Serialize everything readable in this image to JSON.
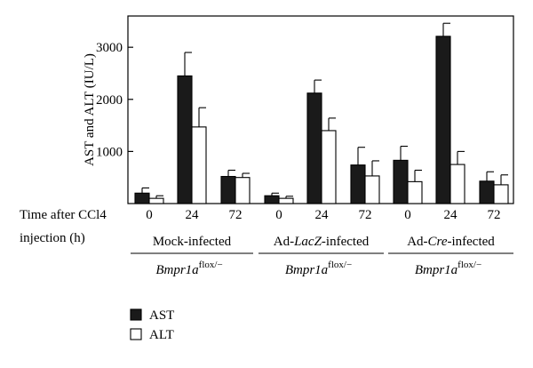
{
  "chart_data": {
    "type": "bar",
    "ylabel": "AST and ALT (IU/L)",
    "ylim": [
      0,
      3600
    ],
    "yticks": [
      1000,
      2000,
      3000
    ],
    "xaxis_row_label": [
      "Time after CCl4",
      "injection (h)"
    ],
    "categories": [
      "0",
      "24",
      "72",
      "0",
      "24",
      "72",
      "0",
      "24",
      "72"
    ],
    "groups": [
      {
        "label_parts": [
          {
            "text": "Mock-infected",
            "italic": false
          }
        ],
        "genotype": "Bmpr1a",
        "genotype_sup": "flox/−",
        "members": [
          0,
          1,
          2
        ]
      },
      {
        "label_parts": [
          {
            "text": "Ad-",
            "italic": false
          },
          {
            "text": "LacZ",
            "italic": true
          },
          {
            "text": "-infected",
            "italic": false
          }
        ],
        "genotype": "Bmpr1a",
        "genotype_sup": "flox/−",
        "members": [
          3,
          4,
          5
        ]
      },
      {
        "label_parts": [
          {
            "text": "Ad-",
            "italic": false
          },
          {
            "text": "Cre",
            "italic": true
          },
          {
            "text": "-infected",
            "italic": false
          }
        ],
        "genotype": "Bmpr1a",
        "genotype_sup": "flox/−",
        "members": [
          6,
          7,
          8
        ]
      }
    ],
    "series": [
      {
        "name": "AST",
        "color": "#1a1a1a",
        "values": [
          200,
          2450,
          520,
          150,
          2120,
          740,
          830,
          3210,
          430
        ],
        "errors": [
          100,
          450,
          120,
          50,
          250,
          340,
          270,
          250,
          180
        ]
      },
      {
        "name": "ALT",
        "color": "#ffffff",
        "values": [
          100,
          1470,
          500,
          100,
          1400,
          530,
          420,
          750,
          360
        ],
        "errors": [
          50,
          370,
          80,
          40,
          240,
          290,
          220,
          250,
          190
        ]
      }
    ],
    "grid": false,
    "legend_position": "bottom-left"
  }
}
